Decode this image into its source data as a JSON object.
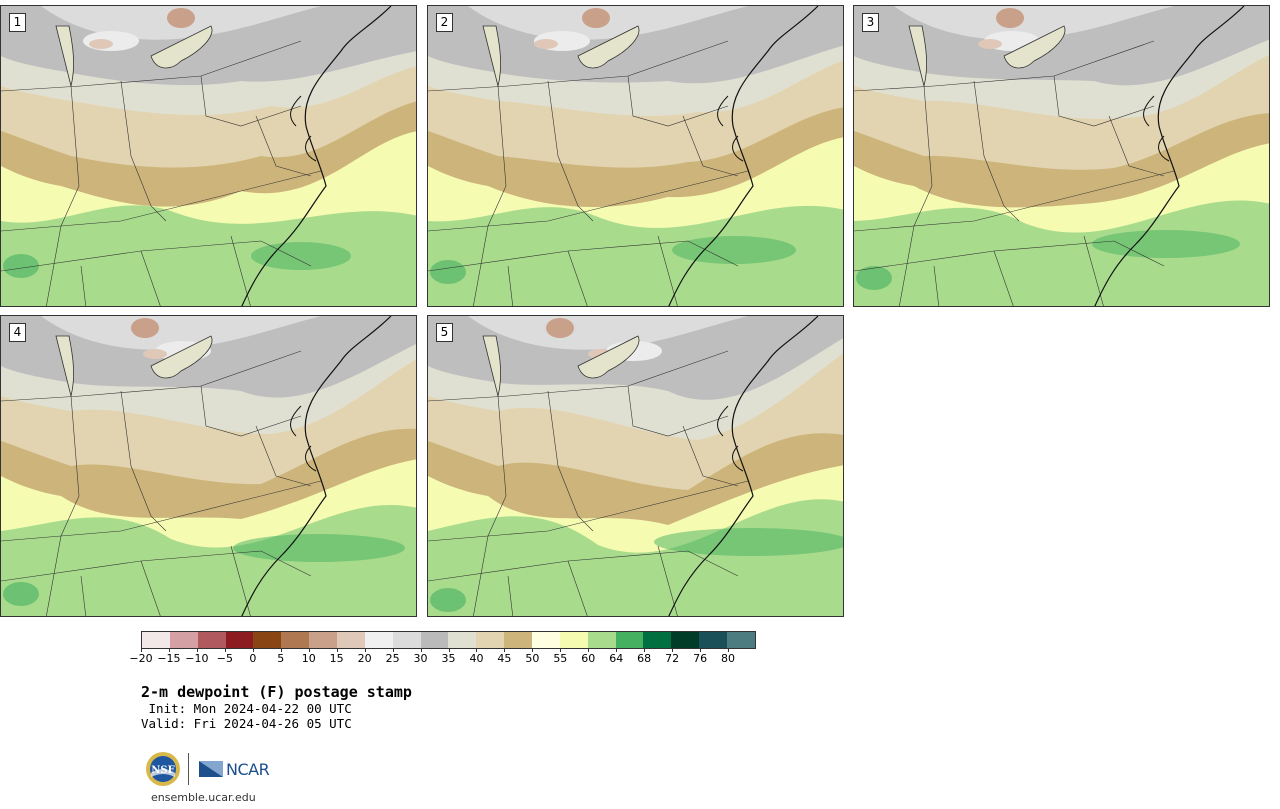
{
  "panels": [
    {
      "label": "1",
      "variant": 0
    },
    {
      "label": "2",
      "variant": 1
    },
    {
      "label": "3",
      "variant": 2
    },
    {
      "label": "4",
      "variant": 3
    },
    {
      "label": "5",
      "variant": 4
    }
  ],
  "colorbar": {
    "colors": [
      "#f3e8e8",
      "#d4a0a4",
      "#b05a60",
      "#8c1c22",
      "#8a4514",
      "#b07850",
      "#c9a08a",
      "#e0c8b8",
      "#f0f0f0",
      "#dcdcdc",
      "#bababa",
      "#e0e0d2",
      "#e2d4b0",
      "#cdb47a",
      "#fffee0",
      "#f6fbb2",
      "#a8dc8c",
      "#44b060",
      "#007040",
      "#003c28",
      "#1c5058",
      "#4c7c80"
    ],
    "ticks": [
      "−20",
      "−15",
      "−10",
      "−5",
      "0",
      "5",
      "10",
      "15",
      "20",
      "25",
      "30",
      "35",
      "40",
      "45",
      "50",
      "55",
      "60",
      "64",
      "68",
      "72",
      "76",
      "80"
    ]
  },
  "title": "2-m dewpoint (F) postage stamp",
  "init": " Init: Mon 2024-04-22 00 UTC",
  "valid": "Valid: Fri 2024-04-26 05 UTC",
  "logo": {
    "ncar": "NCAR",
    "nsf": "NSF"
  },
  "site": "ensemble.ucar.edu"
}
